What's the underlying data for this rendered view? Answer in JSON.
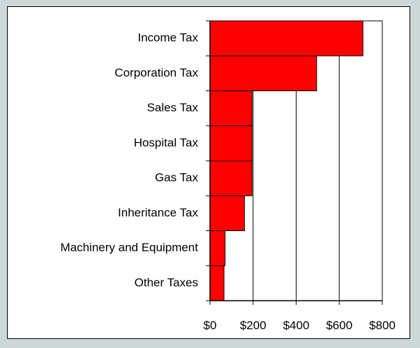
{
  "chart_data": {
    "type": "bar",
    "orientation": "horizontal",
    "title": "",
    "xlabel": "",
    "ylabel": "",
    "categories": [
      "Income Tax",
      "Corporation Tax",
      "Sales Tax",
      "Hospital Tax",
      "Gas Tax",
      "Inheritance Tax",
      "Machinery and Equipment",
      "Other Taxes"
    ],
    "values": [
      710,
      495,
      195,
      195,
      195,
      160,
      70,
      65
    ],
    "xlim": [
      0,
      800
    ],
    "x_ticks": [
      0,
      200,
      400,
      600,
      800
    ],
    "x_tick_labels": [
      "$0",
      "$200",
      "$400",
      "$600",
      "$800"
    ],
    "grid": "vertical",
    "legend": "none",
    "bar_color": "#ff0000",
    "bar_edge_color": "#000000"
  }
}
